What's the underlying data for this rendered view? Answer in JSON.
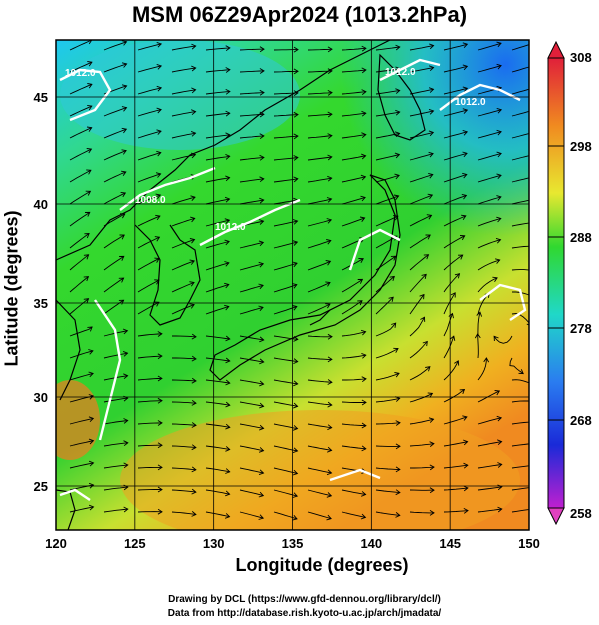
{
  "title": "MSM 06Z29Apr2024 (1013.2hPa)",
  "map": {
    "x_axis": {
      "label": "Longitude (degrees)",
      "min": 120,
      "max": 150,
      "ticks": [
        "120",
        "125",
        "130",
        "135",
        "140",
        "145",
        "150"
      ]
    },
    "y_axis": {
      "label": "Latitude  (degrees)",
      "min": 22.4,
      "max": 47.6,
      "ticks": [
        "25",
        "30",
        "35",
        "40",
        "45"
      ]
    },
    "grid": true,
    "field": "temperature",
    "contour_field": "pressure",
    "contour_labels": [
      "1012.0",
      "1008.0",
      "1012.0",
      "1012.0",
      "1012.0"
    ],
    "vector_field": "wind streamlines"
  },
  "colorbar": {
    "ticks": [
      "308",
      "298",
      "288",
      "278",
      "268",
      "258"
    ],
    "colors": [
      "#e0203a",
      "#f08a20",
      "#e8e830",
      "#30d830",
      "#20d8c8",
      "#2a7cf0",
      "#1a2ad8",
      "#c020d0"
    ]
  },
  "credits": {
    "line1": "Drawing by DCL (https://www.gfd-dennou.org/library/dcl/)",
    "line2": "Data from http://database.rish.kyoto-u.ac.jp/arch/jmadata/"
  }
}
